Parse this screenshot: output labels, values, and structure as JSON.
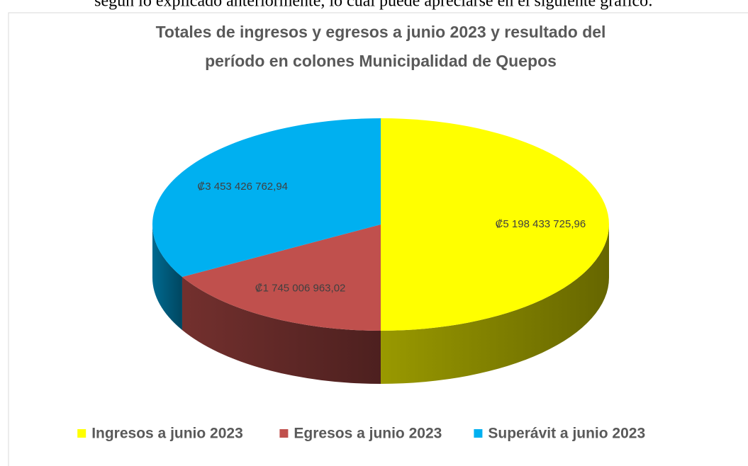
{
  "paragraph": "según lo explicado anteriormente, lo cual puede apreciarse en el siguiente gráfico:",
  "chart_data": {
    "type": "pie3d",
    "title": [
      "Totales de ingresos y egresos a junio 2023 y resultado del",
      "período en colones Municipalidad de Quepos"
    ],
    "categories": [
      "Ingresos a junio 2023",
      "Egresos a junio 2023",
      "Superávit a junio 2023"
    ],
    "values": [
      5198433725.96,
      1745006963.02,
      3453426762.94
    ],
    "value_labels": [
      "₡5 198 433 725,96",
      "₡1 745 006 963,02",
      "₡3 453 426 762,94"
    ],
    "colors": [
      "#ffff00",
      "#c0504d",
      "#00b0f0"
    ],
    "legend": "bottom"
  }
}
